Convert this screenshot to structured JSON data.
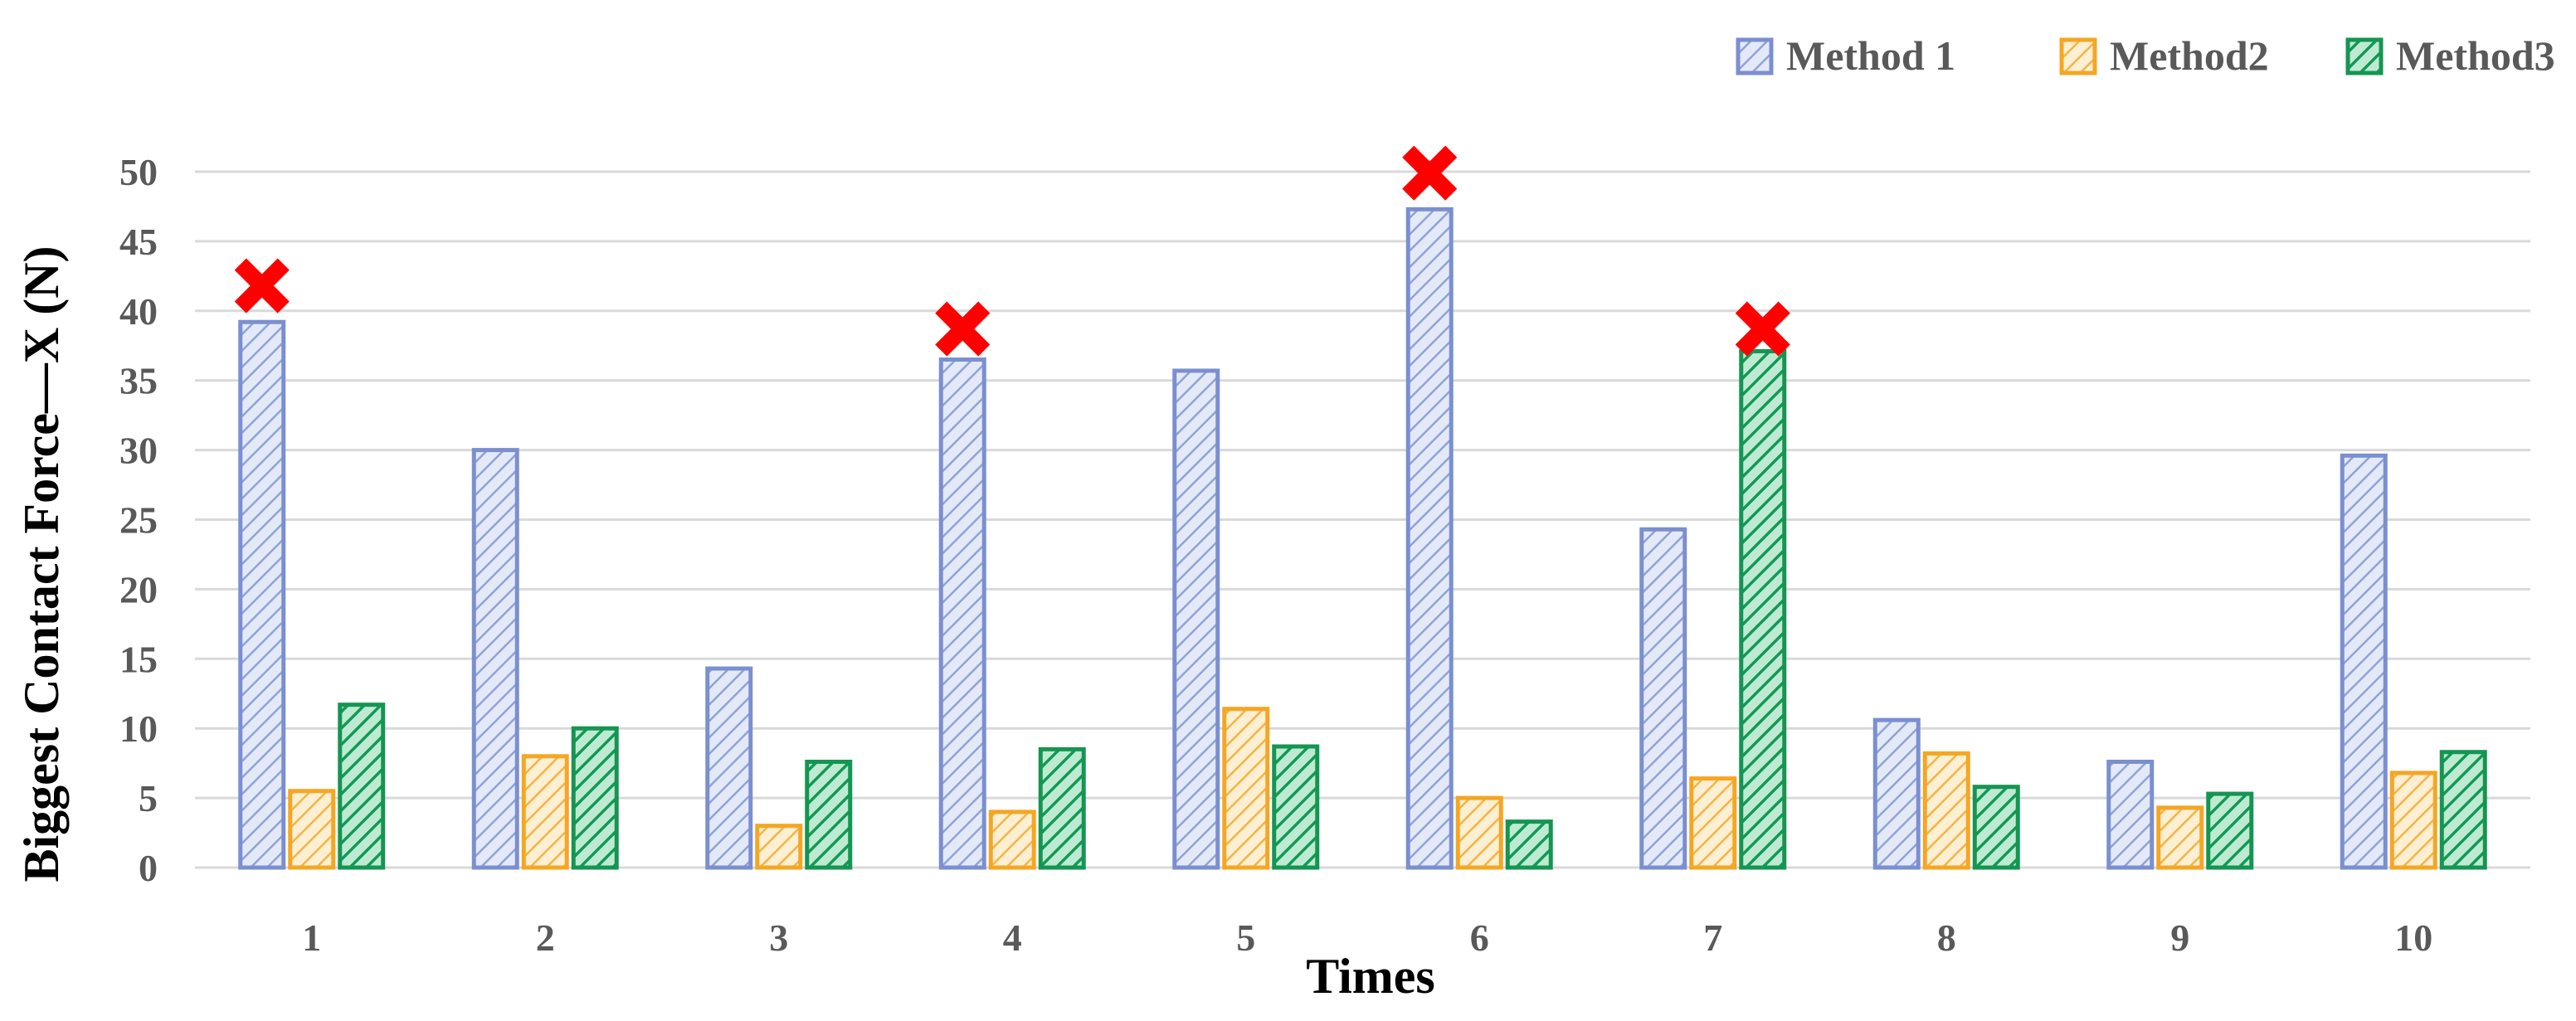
{
  "chart_data": {
    "type": "bar",
    "xlabel": "Times",
    "ylabel": "Biggest Contact Force—X  (N)",
    "ylim": [
      0,
      50
    ],
    "yticks": [
      "0",
      "5",
      "10",
      "15",
      "20",
      "25",
      "30",
      "35",
      "40",
      "45",
      "50"
    ],
    "categories": [
      "1",
      "2",
      "3",
      "4",
      "5",
      "6",
      "7",
      "8",
      "9",
      "10"
    ],
    "grid": true,
    "legend_position": "top-right",
    "series": [
      {
        "name": "Method 1",
        "color": "#8FA3D9",
        "edge": "#7B8FD0",
        "values": [
          39.2,
          30.0,
          14.3,
          36.5,
          35.7,
          47.3,
          24.3,
          10.6,
          7.6,
          29.6
        ]
      },
      {
        "name": "Method2",
        "color": "#F5C46E",
        "edge": "#F5A623",
        "values": [
          5.5,
          8.0,
          3.0,
          4.0,
          11.4,
          5.0,
          6.4,
          8.2,
          4.3,
          6.8
        ]
      },
      {
        "name": "Method3",
        "color": "#1AA660",
        "edge": "#159552",
        "values": [
          11.7,
          10.0,
          7.6,
          8.5,
          8.7,
          3.3,
          37.1,
          5.8,
          5.3,
          8.3
        ]
      }
    ],
    "markers": [
      {
        "category": "1",
        "value": 41.8
      },
      {
        "category": "4",
        "value": 38.7
      },
      {
        "category": "6",
        "value": 49.9,
        "series": "Method 1"
      },
      {
        "category": "7",
        "value": 38.7,
        "series": "Method3"
      }
    ],
    "marker_color": "#FF0000"
  }
}
